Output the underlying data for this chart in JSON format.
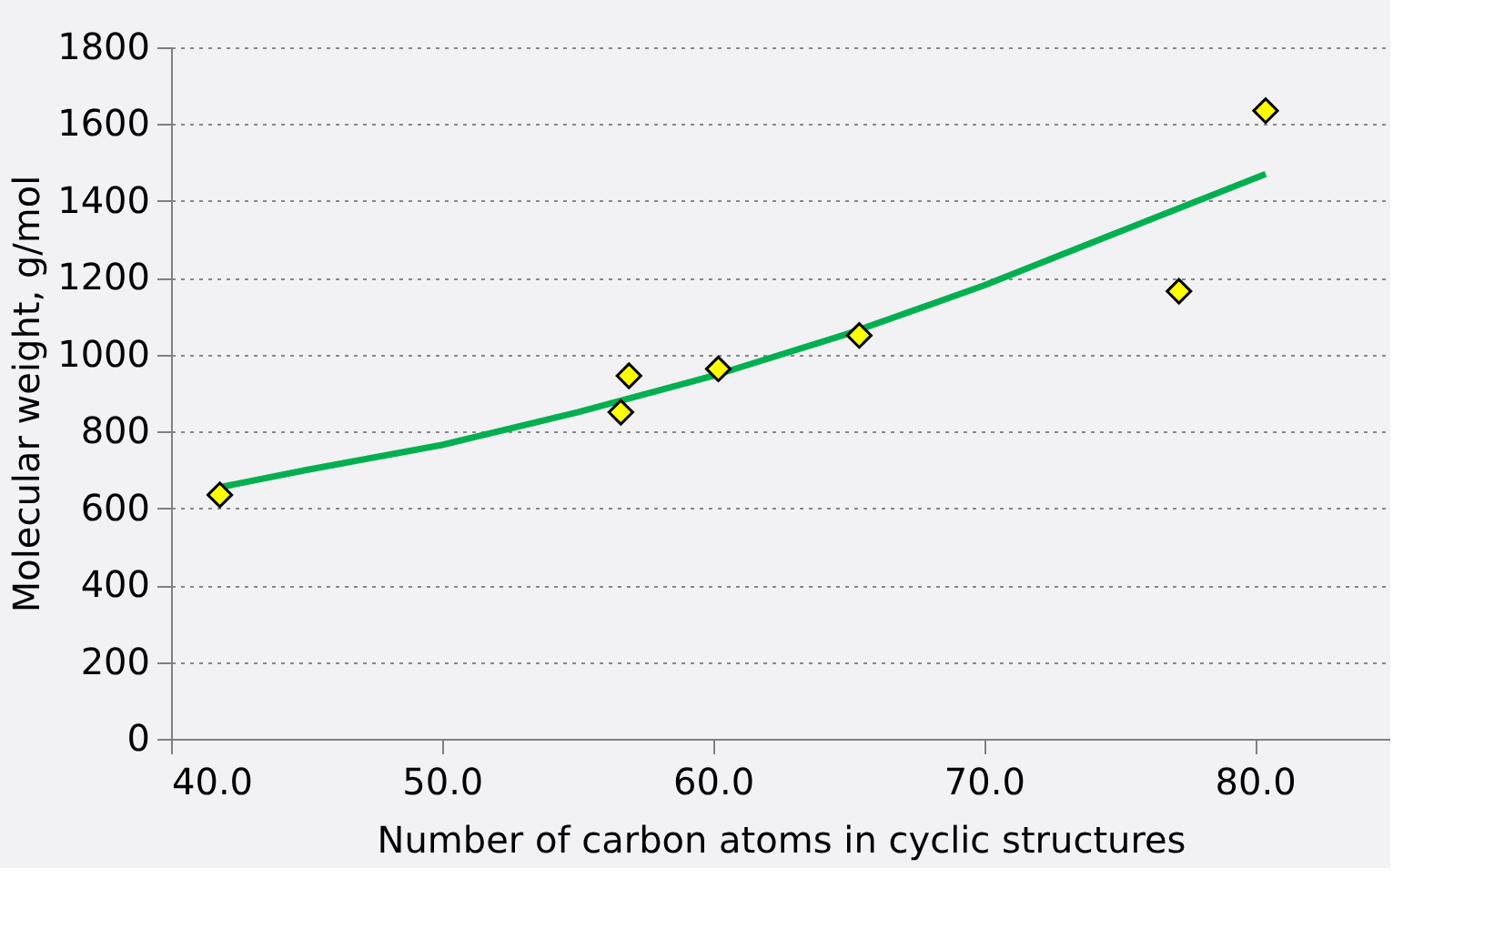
{
  "chart_data": {
    "type": "scatter",
    "xlabel": "Number of carbon atoms in cyclic structures",
    "ylabel": "Molecular weight, g/mol",
    "xlim": [
      40,
      85
    ],
    "xticks": [
      {
        "value": 40,
        "label": "40.0"
      },
      {
        "value": 50,
        "label": "50.0"
      },
      {
        "value": 60,
        "label": "60.0"
      },
      {
        "value": 70,
        "label": "70.0"
      },
      {
        "value": 80,
        "label": "80.0"
      }
    ],
    "ylim": [
      0,
      1800
    ],
    "yticks": [
      0,
      200,
      400,
      600,
      800,
      1000,
      1200,
      1400,
      1600,
      1800
    ],
    "grid": "y",
    "series": [
      {
        "color": "#ffff00",
        "marker": "diamond",
        "x": [
          41.8,
          56.6,
          56.9,
          60.2,
          65.4,
          77.2,
          80.4
        ],
        "values": [
          635,
          850,
          945,
          963,
          1050,
          1165,
          1635
        ]
      },
      {
        "type": "line",
        "color": "#00b050",
        "marker": "none",
        "line_style": "solid",
        "x": [
          41.8,
          45,
          50,
          55,
          60,
          65,
          70,
          75,
          80.4
        ],
        "values": [
          655,
          700,
          765,
          850,
          945,
          1055,
          1180,
          1320,
          1470
        ]
      }
    ]
  }
}
